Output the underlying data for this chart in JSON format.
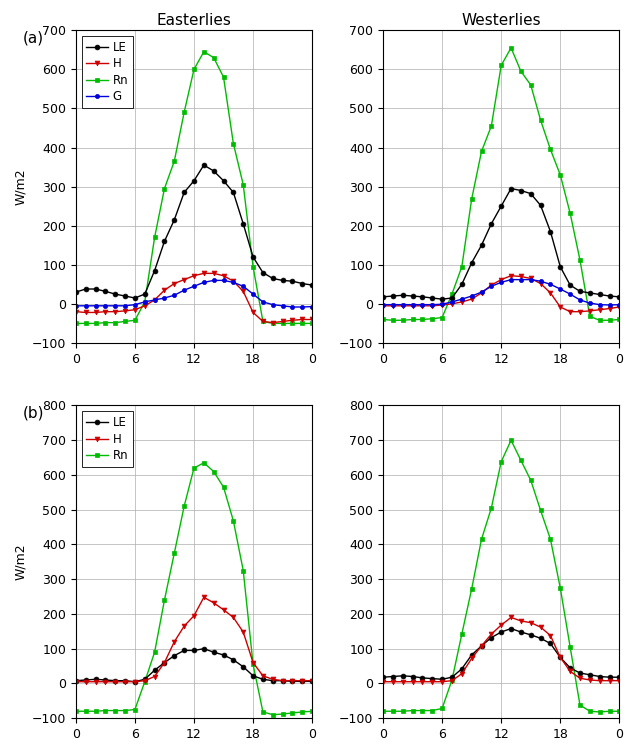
{
  "hours": [
    0,
    1,
    2,
    3,
    4,
    5,
    6,
    7,
    8,
    9,
    10,
    11,
    12,
    13,
    14,
    15,
    16,
    17,
    18,
    19,
    20,
    21,
    22,
    23,
    24
  ],
  "a_east_LE": [
    30,
    38,
    38,
    32,
    25,
    20,
    15,
    25,
    85,
    160,
    215,
    285,
    315,
    355,
    340,
    315,
    285,
    205,
    120,
    80,
    65,
    60,
    58,
    52,
    48
  ],
  "a_east_H": [
    -20,
    -22,
    -22,
    -20,
    -20,
    -18,
    -15,
    -5,
    10,
    35,
    52,
    62,
    72,
    78,
    78,
    72,
    58,
    32,
    -22,
    -45,
    -48,
    -45,
    -42,
    -40,
    -40
  ],
  "a_east_Rn": [
    -50,
    -50,
    -50,
    -48,
    -48,
    -45,
    -42,
    5,
    170,
    295,
    365,
    490,
    600,
    645,
    630,
    580,
    410,
    305,
    95,
    -45,
    -50,
    -50,
    -50,
    -50,
    -50
  ],
  "a_east_G": [
    -5,
    -5,
    -5,
    -5,
    -5,
    -5,
    -2,
    5,
    10,
    15,
    22,
    35,
    45,
    55,
    60,
    60,
    55,
    45,
    25,
    5,
    -2,
    -5,
    -8,
    -8,
    -7
  ],
  "a_west_LE": [
    18,
    20,
    22,
    20,
    18,
    15,
    12,
    15,
    50,
    105,
    150,
    205,
    250,
    295,
    290,
    282,
    252,
    185,
    95,
    48,
    32,
    28,
    24,
    20,
    18
  ],
  "a_west_H": [
    -5,
    -5,
    -5,
    -5,
    -5,
    -5,
    -3,
    0,
    5,
    12,
    28,
    48,
    62,
    72,
    70,
    65,
    52,
    28,
    -8,
    -20,
    -20,
    -18,
    -15,
    -12,
    -8
  ],
  "a_west_Rn": [
    -40,
    -42,
    -42,
    -40,
    -40,
    -38,
    -35,
    25,
    95,
    268,
    390,
    455,
    610,
    655,
    595,
    560,
    470,
    395,
    330,
    232,
    112,
    -32,
    -42,
    -42,
    -40
  ],
  "a_west_G": [
    -2,
    -2,
    -2,
    -2,
    -2,
    -2,
    -1,
    5,
    12,
    20,
    30,
    45,
    55,
    62,
    62,
    62,
    58,
    50,
    38,
    25,
    10,
    2,
    -2,
    -3,
    -2
  ],
  "b_east_LE": [
    8,
    10,
    12,
    10,
    8,
    8,
    5,
    12,
    38,
    60,
    80,
    95,
    95,
    100,
    90,
    82,
    68,
    48,
    22,
    12,
    8,
    8,
    6,
    6,
    6
  ],
  "b_east_H": [
    5,
    5,
    5,
    5,
    5,
    5,
    5,
    8,
    20,
    60,
    120,
    165,
    195,
    248,
    232,
    212,
    190,
    148,
    60,
    22,
    12,
    8,
    8,
    8,
    8
  ],
  "b_east_Rn": [
    -80,
    -80,
    -80,
    -78,
    -78,
    -78,
    -75,
    5,
    90,
    240,
    375,
    510,
    620,
    635,
    610,
    565,
    468,
    325,
    55,
    -82,
    -90,
    -88,
    -85,
    -82,
    -80
  ],
  "b_west_LE": [
    18,
    20,
    22,
    20,
    16,
    14,
    12,
    18,
    42,
    82,
    108,
    132,
    148,
    158,
    148,
    140,
    130,
    115,
    75,
    45,
    30,
    25,
    20,
    18,
    18
  ],
  "b_west_H": [
    5,
    5,
    5,
    5,
    5,
    5,
    5,
    8,
    28,
    72,
    108,
    142,
    168,
    190,
    180,
    175,
    162,
    138,
    75,
    35,
    15,
    10,
    8,
    8,
    8
  ],
  "b_west_Rn": [
    -80,
    -80,
    -80,
    -78,
    -78,
    -78,
    -72,
    10,
    142,
    272,
    415,
    505,
    638,
    700,
    642,
    585,
    498,
    415,
    275,
    105,
    -62,
    -80,
    -82,
    -80,
    -80
  ],
  "colors": {
    "LE": "#000000",
    "H": "#cc0000",
    "Rn": "#00bb00",
    "G": "#0000dd"
  },
  "title_east": "Easterlies",
  "title_west": "Westerlies",
  "ylabel": "W/m2",
  "ylim_a": [
    -100,
    700
  ],
  "ylim_b": [
    -100,
    800
  ],
  "yticks_a": [
    -100,
    0,
    100,
    200,
    300,
    400,
    500,
    600,
    700
  ],
  "yticks_b": [
    -100,
    0,
    100,
    200,
    300,
    400,
    500,
    600,
    700,
    800
  ],
  "figsize": [
    6.32,
    7.56
  ],
  "dpi": 100
}
